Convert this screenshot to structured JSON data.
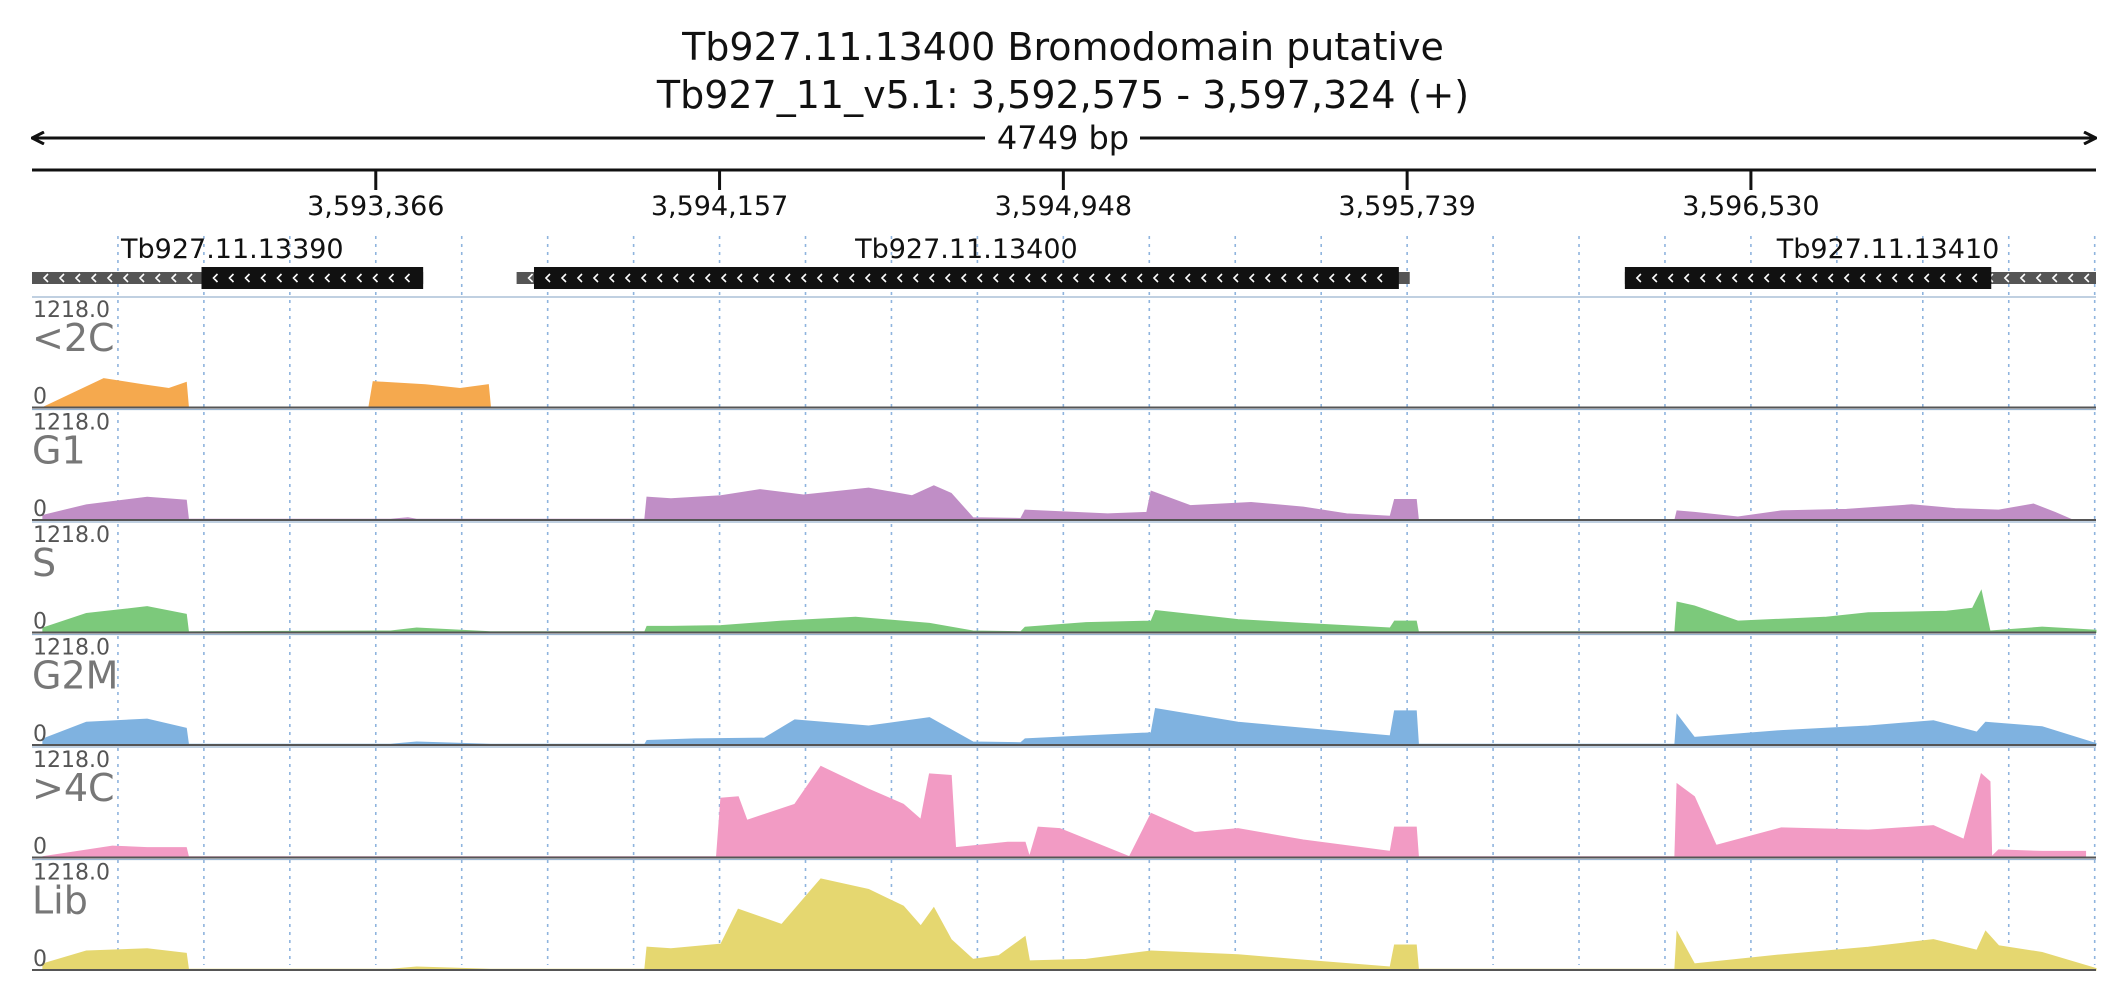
{
  "chart_data": {
    "type": "area",
    "title": "Tb927.11.13400  Bromodomain  putative",
    "subtitle": "Tb927_11_v5.1: 3,592,575 - 3,597,324 (+)",
    "length_label": "4749 bp",
    "xlim": [
      3592575,
      3597324
    ],
    "ticks": [
      {
        "value": 3593366,
        "label": "3,593,366"
      },
      {
        "value": 3594157,
        "label": "3,594,157"
      },
      {
        "value": 3594948,
        "label": "3,594,948"
      },
      {
        "value": 3595739,
        "label": "3,595,739"
      },
      {
        "value": 3596530,
        "label": "3,596,530"
      }
    ],
    "genes": [
      {
        "name": "Tb927.11.13390",
        "start": 3592575,
        "end": 3593475,
        "cds_start": 3592965,
        "cds_end": 3593475,
        "strand": "-"
      },
      {
        "name": "Tb927.11.13400",
        "start": 3593690,
        "end": 3595745,
        "cds_start": 3593730,
        "cds_end": 3595720,
        "strand": "-"
      },
      {
        "name": "Tb927.11.13410",
        "start": 3596240,
        "end": 3597324,
        "cds_start": 3596240,
        "cds_end": 3597083,
        "strand": "-"
      }
    ],
    "ylim": [
      0,
      1218.0
    ],
    "max_label": "1218.0",
    "zero_label": "0",
    "series": [
      {
        "name": "<2C",
        "color": "#f5a94e",
        "points": [
          [
            3592600,
            0
          ],
          [
            3592740,
            380
          ],
          [
            3592830,
            300
          ],
          [
            3592890,
            250
          ],
          [
            3592930,
            330
          ],
          [
            3592935,
            0
          ],
          [
            3593350,
            0
          ],
          [
            3593360,
            340
          ],
          [
            3593480,
            300
          ],
          [
            3593560,
            250
          ],
          [
            3593625,
            300
          ],
          [
            3593630,
            0
          ]
        ]
      },
      {
        "name": "G1",
        "color": "#c08ec6",
        "points": [
          [
            3592600,
            60
          ],
          [
            3592700,
            200
          ],
          [
            3592840,
            300
          ],
          [
            3592930,
            260
          ],
          [
            3592935,
            10
          ],
          [
            3593400,
            10
          ],
          [
            3593440,
            30
          ],
          [
            3593460,
            10
          ],
          [
            3593630,
            10
          ],
          [
            3593985,
            10
          ],
          [
            3593990,
            300
          ],
          [
            3594045,
            280
          ],
          [
            3594160,
            320
          ],
          [
            3594250,
            400
          ],
          [
            3594350,
            330
          ],
          [
            3594500,
            420
          ],
          [
            3594600,
            320
          ],
          [
            3594650,
            450
          ],
          [
            3594690,
            350
          ],
          [
            3594740,
            30
          ],
          [
            3594850,
            20
          ],
          [
            3594860,
            130
          ],
          [
            3595050,
            80
          ],
          [
            3595140,
            100
          ],
          [
            3595150,
            380
          ],
          [
            3595240,
            190
          ],
          [
            3595380,
            230
          ],
          [
            3595500,
            170
          ],
          [
            3595600,
            80
          ],
          [
            3595700,
            50
          ],
          [
            3595710,
            270
          ],
          [
            3595760,
            270
          ],
          [
            3595765,
            0
          ],
          [
            3596355,
            0
          ],
          [
            3596360,
            120
          ],
          [
            3596400,
            100
          ],
          [
            3596500,
            40
          ],
          [
            3596600,
            120
          ],
          [
            3596750,
            140
          ],
          [
            3596900,
            200
          ],
          [
            3597000,
            150
          ],
          [
            3597100,
            130
          ],
          [
            3597180,
            210
          ],
          [
            3597230,
            100
          ],
          [
            3597270,
            0
          ]
        ]
      },
      {
        "name": "S",
        "color": "#7cc97b",
        "points": [
          [
            3592600,
            60
          ],
          [
            3592700,
            250
          ],
          [
            3592840,
            340
          ],
          [
            3592930,
            240
          ],
          [
            3592935,
            10
          ],
          [
            3593400,
            20
          ],
          [
            3593460,
            60
          ],
          [
            3593630,
            10
          ],
          [
            3593985,
            10
          ],
          [
            3593990,
            80
          ],
          [
            3594045,
            80
          ],
          [
            3594160,
            90
          ],
          [
            3594300,
            150
          ],
          [
            3594470,
            200
          ],
          [
            3594640,
            120
          ],
          [
            3594740,
            20
          ],
          [
            3594850,
            10
          ],
          [
            3594860,
            70
          ],
          [
            3595000,
            130
          ],
          [
            3595150,
            150
          ],
          [
            3595160,
            290
          ],
          [
            3595350,
            170
          ],
          [
            3595500,
            120
          ],
          [
            3595700,
            60
          ],
          [
            3595710,
            150
          ],
          [
            3595760,
            150
          ],
          [
            3595765,
            10
          ],
          [
            3596355,
            10
          ],
          [
            3596360,
            400
          ],
          [
            3596400,
            350
          ],
          [
            3596500,
            150
          ],
          [
            3596700,
            200
          ],
          [
            3596800,
            260
          ],
          [
            3596900,
            270
          ],
          [
            3596980,
            280
          ],
          [
            3597040,
            320
          ],
          [
            3597060,
            550
          ],
          [
            3597080,
            20
          ],
          [
            3597200,
            70
          ],
          [
            3597324,
            30
          ]
        ]
      },
      {
        "name": "G2M",
        "color": "#7fb2e0",
        "points": [
          [
            3592600,
            80
          ],
          [
            3592700,
            300
          ],
          [
            3592840,
            340
          ],
          [
            3592930,
            220
          ],
          [
            3592935,
            10
          ],
          [
            3593400,
            10
          ],
          [
            3593460,
            40
          ],
          [
            3593630,
            10
          ],
          [
            3593985,
            10
          ],
          [
            3593990,
            60
          ],
          [
            3594100,
            80
          ],
          [
            3594260,
            90
          ],
          [
            3594330,
            330
          ],
          [
            3594500,
            250
          ],
          [
            3594640,
            360
          ],
          [
            3594740,
            40
          ],
          [
            3594850,
            30
          ],
          [
            3594860,
            80
          ],
          [
            3595000,
            120
          ],
          [
            3595150,
            160
          ],
          [
            3595160,
            480
          ],
          [
            3595350,
            300
          ],
          [
            3595500,
            220
          ],
          [
            3595700,
            120
          ],
          [
            3595710,
            450
          ],
          [
            3595760,
            450
          ],
          [
            3595765,
            10
          ],
          [
            3596355,
            10
          ],
          [
            3596360,
            400
          ],
          [
            3596400,
            100
          ],
          [
            3596600,
            190
          ],
          [
            3596800,
            250
          ],
          [
            3596950,
            320
          ],
          [
            3597050,
            170
          ],
          [
            3597070,
            300
          ],
          [
            3597200,
            240
          ],
          [
            3597324,
            20
          ]
        ]
      },
      {
        "name": ">4C",
        "color": "#f29bc4",
        "points": [
          [
            3592600,
            10
          ],
          [
            3592760,
            150
          ],
          [
            3592840,
            130
          ],
          [
            3592930,
            130
          ],
          [
            3592935,
            10
          ],
          [
            3594150,
            10
          ],
          [
            3594160,
            780
          ],
          [
            3594200,
            800
          ],
          [
            3594220,
            490
          ],
          [
            3594330,
            700
          ],
          [
            3594390,
            1200
          ],
          [
            3594500,
            900
          ],
          [
            3594580,
            700
          ],
          [
            3594620,
            500
          ],
          [
            3594640,
            1100
          ],
          [
            3594690,
            1080
          ],
          [
            3594700,
            130
          ],
          [
            3594820,
            200
          ],
          [
            3594860,
            200
          ],
          [
            3594870,
            10
          ],
          [
            3594890,
            400
          ],
          [
            3594940,
            380
          ],
          [
            3595100,
            10
          ],
          [
            3595150,
            580
          ],
          [
            3595250,
            330
          ],
          [
            3595350,
            380
          ],
          [
            3595500,
            230
          ],
          [
            3595700,
            80
          ],
          [
            3595710,
            400
          ],
          [
            3595760,
            400
          ],
          [
            3595765,
            10
          ],
          [
            3596355,
            10
          ],
          [
            3596360,
            970
          ],
          [
            3596400,
            800
          ],
          [
            3596450,
            160
          ],
          [
            3596600,
            390
          ],
          [
            3596800,
            360
          ],
          [
            3596950,
            420
          ],
          [
            3597020,
            240
          ],
          [
            3597060,
            1100
          ],
          [
            3597080,
            1000
          ],
          [
            3597084,
            10
          ],
          [
            3597100,
            100
          ],
          [
            3597200,
            80
          ],
          [
            3597300,
            80
          ]
        ]
      },
      {
        "name": "Lib",
        "color": "#e5d770",
        "points": [
          [
            3592600,
            80
          ],
          [
            3592700,
            250
          ],
          [
            3592840,
            280
          ],
          [
            3592930,
            220
          ],
          [
            3592935,
            10
          ],
          [
            3593400,
            10
          ],
          [
            3593460,
            40
          ],
          [
            3593630,
            10
          ],
          [
            3593985,
            10
          ],
          [
            3593990,
            300
          ],
          [
            3594045,
            280
          ],
          [
            3594160,
            340
          ],
          [
            3594200,
            800
          ],
          [
            3594300,
            600
          ],
          [
            3594390,
            1200
          ],
          [
            3594500,
            1060
          ],
          [
            3594580,
            840
          ],
          [
            3594620,
            580
          ],
          [
            3594650,
            820
          ],
          [
            3594690,
            400
          ],
          [
            3594740,
            140
          ],
          [
            3594800,
            190
          ],
          [
            3594860,
            440
          ],
          [
            3594870,
            120
          ],
          [
            3595000,
            140
          ],
          [
            3595150,
            250
          ],
          [
            3595350,
            200
          ],
          [
            3595500,
            130
          ],
          [
            3595700,
            40
          ],
          [
            3595710,
            330
          ],
          [
            3595760,
            330
          ],
          [
            3595765,
            10
          ],
          [
            3596355,
            10
          ],
          [
            3596360,
            500
          ],
          [
            3596400,
            80
          ],
          [
            3596600,
            200
          ],
          [
            3596800,
            300
          ],
          [
            3596950,
            400
          ],
          [
            3597050,
            260
          ],
          [
            3597070,
            510
          ],
          [
            3597100,
            320
          ],
          [
            3597200,
            230
          ],
          [
            3597324,
            20
          ]
        ]
      }
    ],
    "grid": true,
    "grid_style": "dotted-vertical",
    "legend": "none"
  }
}
